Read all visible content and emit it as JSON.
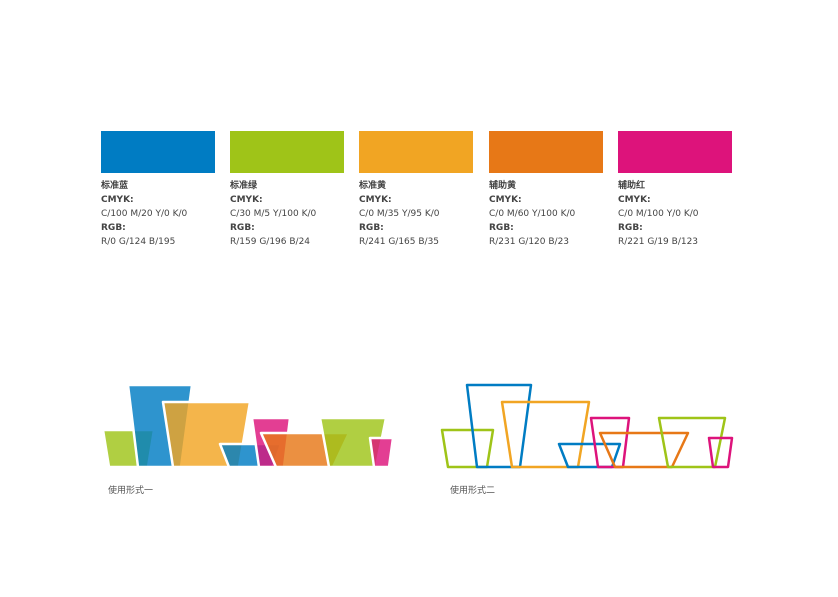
{
  "palette": [
    {
      "name": "标准蓝",
      "cmyk_label": "CMYK:",
      "cmyk": "C/100  M/20  Y/0  K/0",
      "rgb_label": "RGB:",
      "rgb": "R/0  G/124  B/195",
      "color": "#007CC3"
    },
    {
      "name": "标准绿",
      "cmyk_label": "CMYK:",
      "cmyk": "C/30  M/5  Y/100  K/0",
      "rgb_label": "RGB:",
      "rgb": "R/159  G/196  B/24",
      "color": "#9FC418"
    },
    {
      "name": "标准黄",
      "cmyk_label": "CMYK:",
      "cmyk": "C/0  M/35  Y/95  K/0",
      "rgb_label": "RGB:",
      "rgb": "R/241  G/165  B/35",
      "color": "#F1A523"
    },
    {
      "name": "辅助黄",
      "cmyk_label": "CMYK:",
      "cmyk": "C/0  M/60  Y/100  K/0",
      "rgb_label": "RGB:",
      "rgb": "R/231  G/120  B/23",
      "color": "#E77817"
    },
    {
      "name": "辅助红",
      "cmyk_label": "CMYK:",
      "cmyk": "C/0  M/100  Y/0  K/0",
      "rgb_label": "RGB:",
      "rgb": "R/221  G/19  B/123",
      "color": "#DD137B"
    }
  ],
  "usage": {
    "form1": "使用形式一",
    "form2": "使用形式二"
  }
}
